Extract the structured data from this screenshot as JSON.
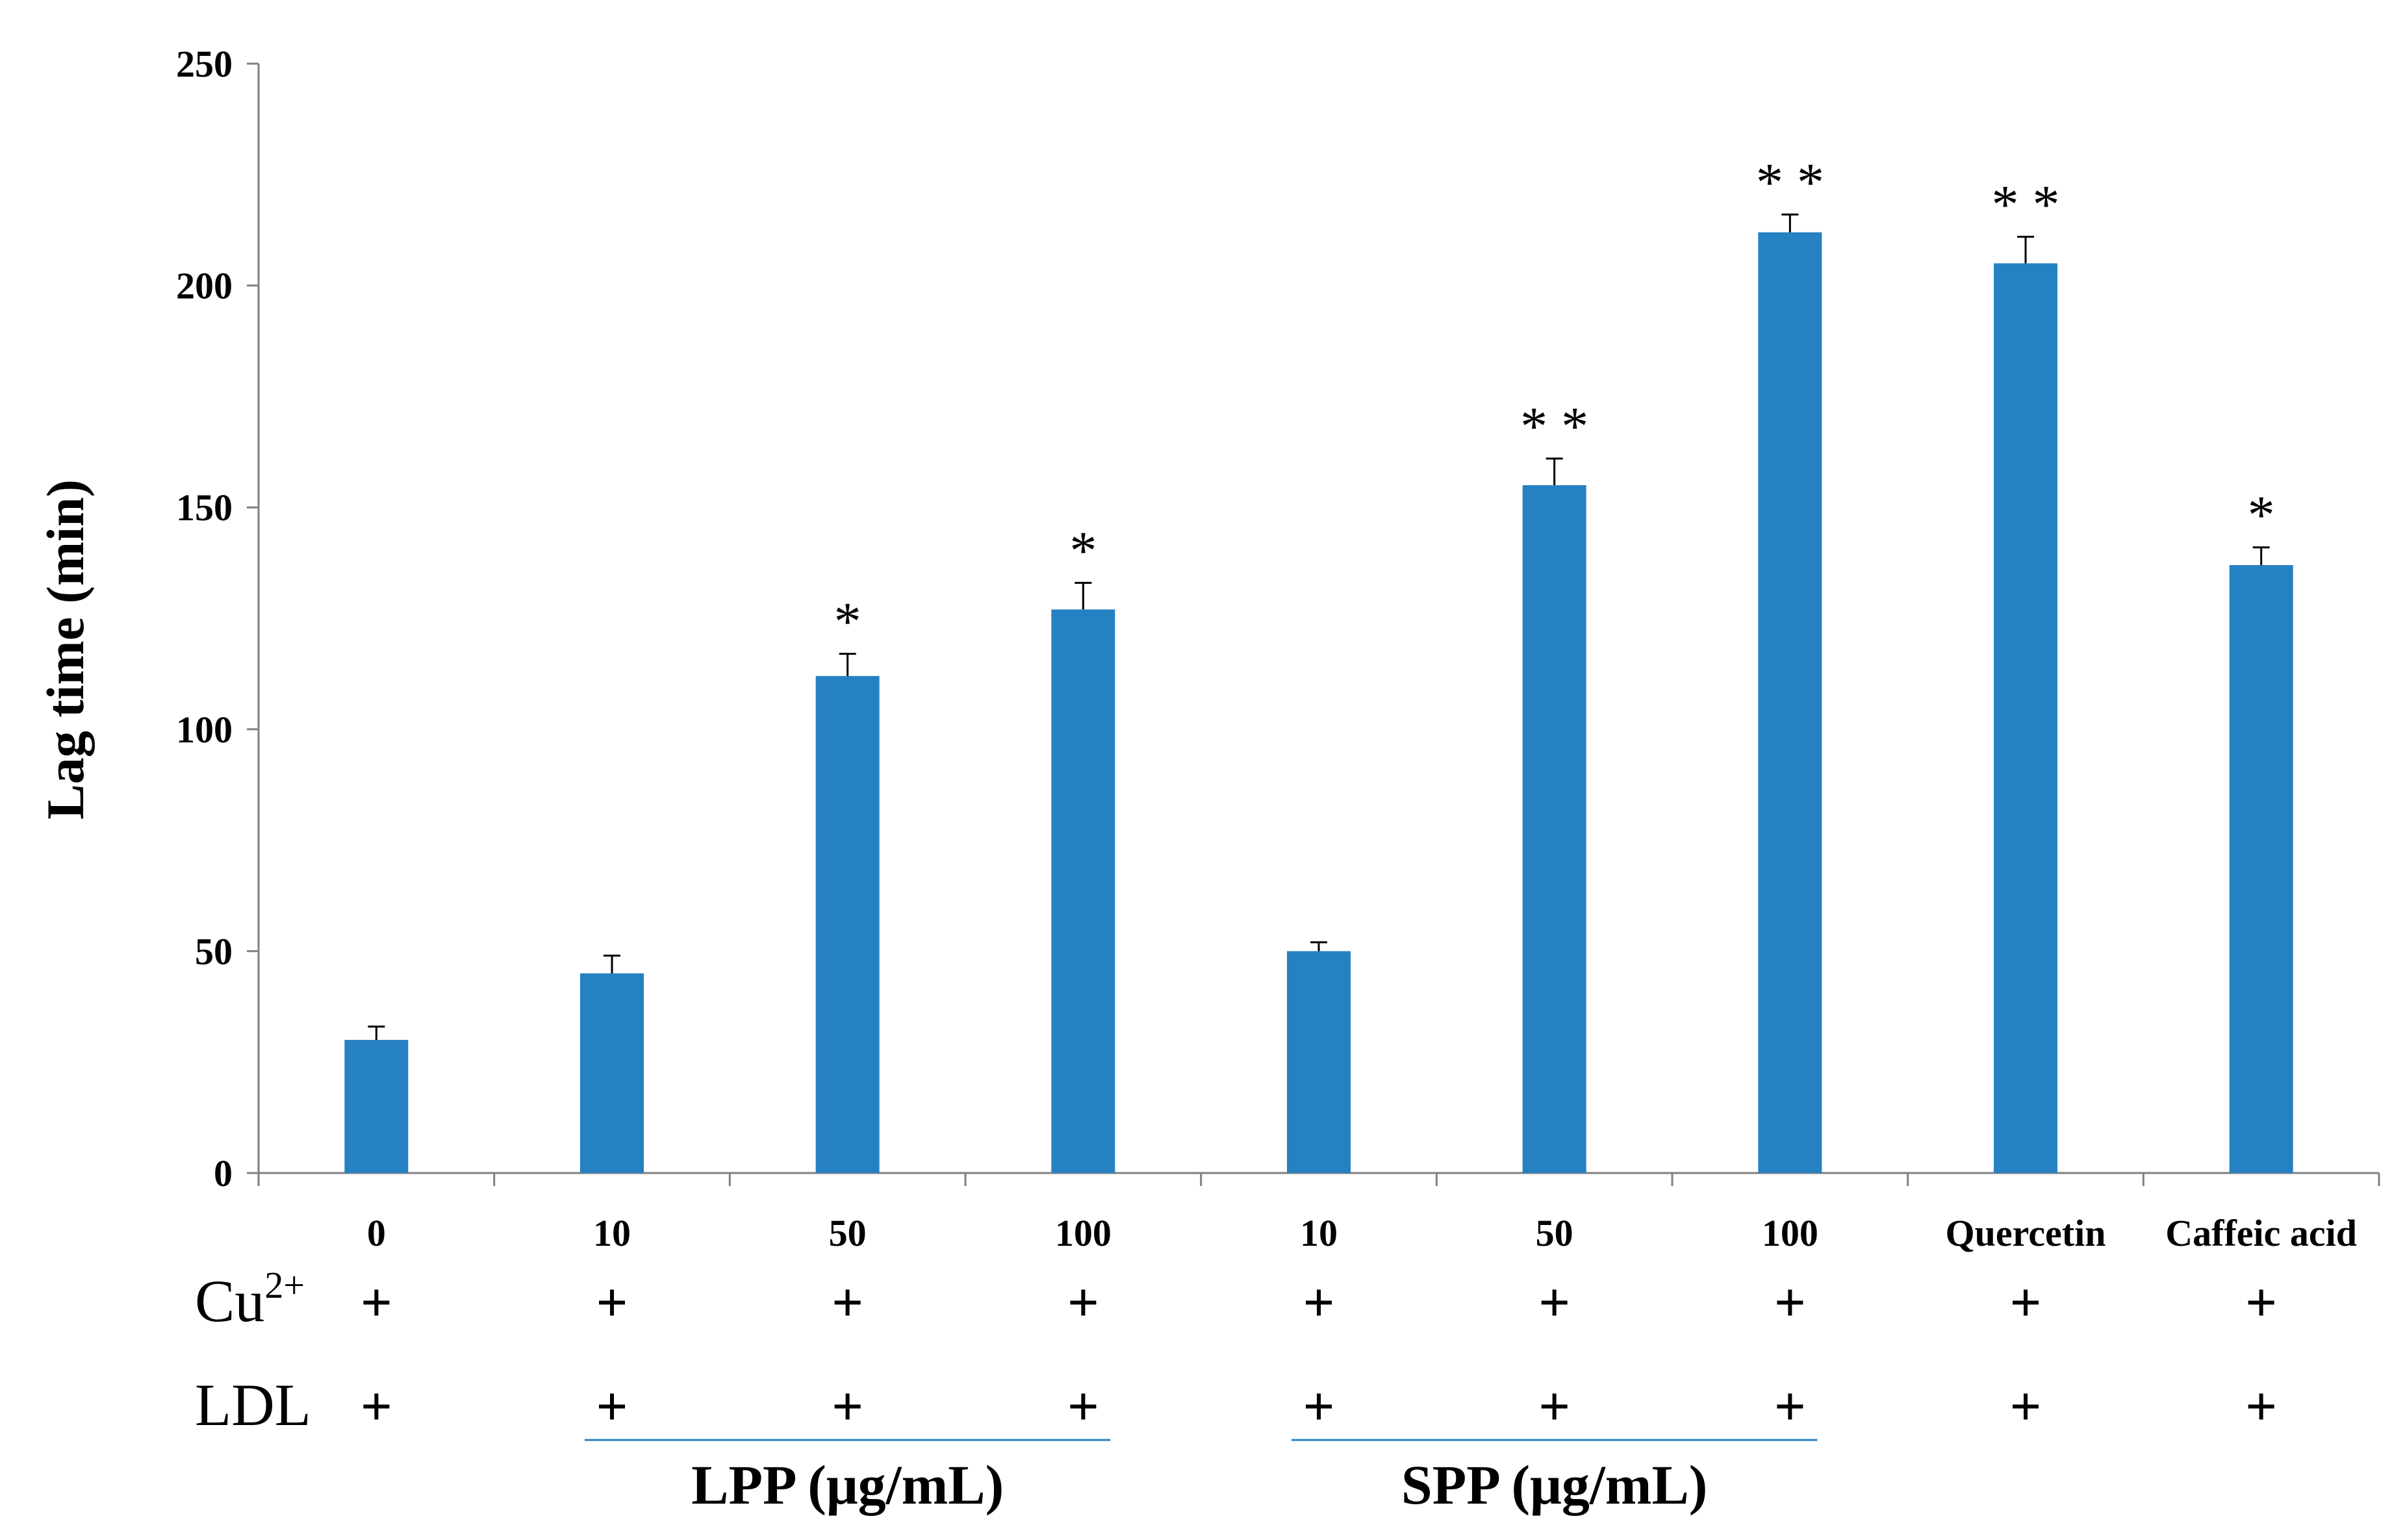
{
  "chart_data": {
    "type": "bar",
    "title": "",
    "xlabel": "",
    "ylabel": "Lag time (min)",
    "ylim": [
      0,
      250
    ],
    "yticks": [
      0,
      50,
      100,
      150,
      200,
      250
    ],
    "grid": false,
    "bar_color": "#2681c2",
    "categories": [
      "0",
      "10",
      "50",
      "100",
      "10",
      "50",
      "100",
      "Quercetin",
      "Caffeic acid"
    ],
    "values": [
      30,
      45,
      112,
      127,
      50,
      155,
      212,
      205,
      137
    ],
    "errors": [
      3,
      4,
      5,
      6,
      2,
      6,
      4,
      6,
      4
    ],
    "significance": [
      "",
      "",
      "*",
      "*",
      "",
      "**",
      "**",
      "**",
      "*"
    ],
    "rows": [
      {
        "label": "Cu",
        "label_sup": "2+",
        "marks": [
          "+",
          "+",
          "+",
          "+",
          "+",
          "+",
          "+",
          "+",
          "+"
        ]
      },
      {
        "label": "LDL",
        "label_sup": "",
        "marks": [
          "+",
          "+",
          "+",
          "+",
          "+",
          "+",
          "+",
          "+",
          "+"
        ]
      }
    ],
    "groups": [
      {
        "label": "LPP (μg/mL)",
        "from": 1,
        "to": 3,
        "line_color": "#2681c2"
      },
      {
        "label": "SPP (μg/mL)",
        "from": 4,
        "to": 6,
        "line_color": "#2681c2"
      }
    ]
  }
}
